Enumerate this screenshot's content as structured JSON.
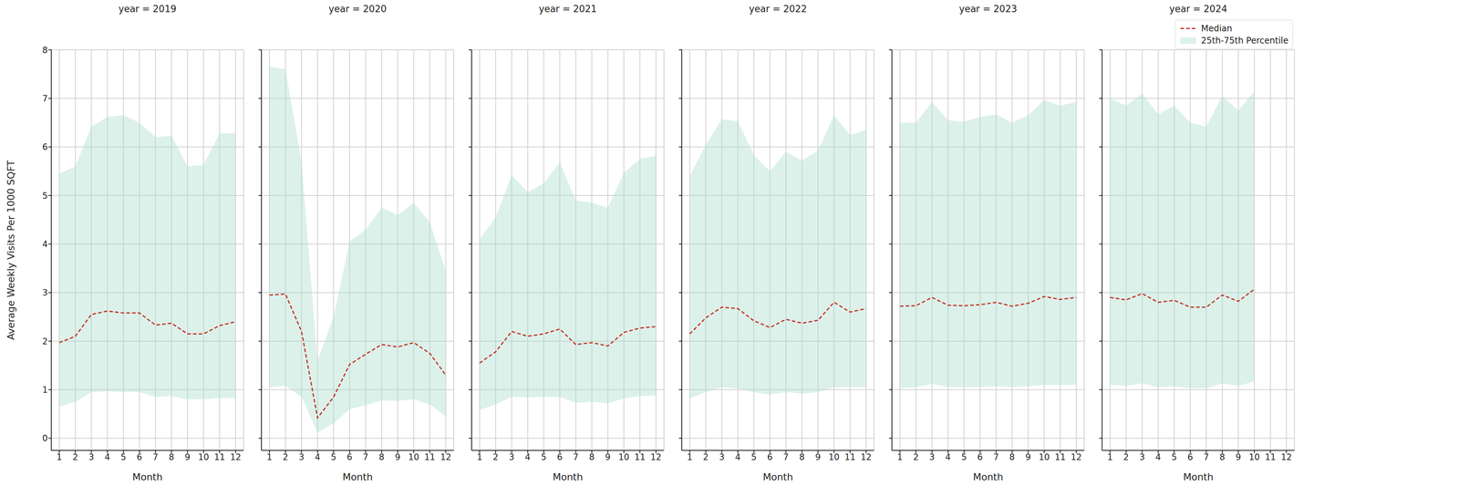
{
  "chart_data": [
    {
      "type": "line",
      "title": "year = 2019",
      "x_label": "Month",
      "y_label": "Average Weekly Visits Per 1000 SQFT",
      "x": [
        1,
        2,
        3,
        4,
        5,
        6,
        7,
        8,
        9,
        10,
        11,
        12
      ],
      "xlim": [
        0.5,
        12.5
      ],
      "xticks": [
        1,
        2,
        3,
        4,
        5,
        6,
        7,
        8,
        9,
        10,
        11,
        12
      ],
      "ylim": [
        -0.25,
        8
      ],
      "yticks": [
        0,
        1,
        2,
        3,
        4,
        5,
        6,
        7,
        8
      ],
      "grid": true,
      "series": [
        {
          "name": "Median",
          "type": "line",
          "color": "#c0392b",
          "line_style": "dashed",
          "values": [
            1.97,
            2.1,
            2.55,
            2.62,
            2.58,
            2.58,
            2.33,
            2.37,
            2.15,
            2.15,
            2.32,
            2.4
          ]
        },
        {
          "name": "25th-75th Percentile",
          "type": "area",
          "color": "#a9dccd",
          "lower": [
            0.65,
            0.75,
            0.95,
            0.97,
            0.95,
            0.95,
            0.85,
            0.87,
            0.8,
            0.8,
            0.83,
            0.83
          ],
          "upper": [
            5.45,
            5.6,
            6.42,
            6.62,
            6.65,
            6.5,
            6.2,
            6.23,
            5.6,
            5.63,
            6.28,
            6.28
          ]
        }
      ]
    },
    {
      "type": "line",
      "title": "year = 2020",
      "x_label": "Month",
      "tick_labels": "x",
      "x": [
        1,
        2,
        3,
        4,
        5,
        6,
        7,
        8,
        9,
        10,
        11,
        12
      ],
      "xlim": [
        0.5,
        12.5
      ],
      "xticks": [
        1,
        2,
        3,
        4,
        5,
        6,
        7,
        8,
        9,
        10,
        11,
        12
      ],
      "ylim": [
        -0.25,
        8
      ],
      "yticks": [
        0,
        1,
        2,
        3,
        4,
        5,
        6,
        7,
        8
      ],
      "grid": true,
      "series": [
        {
          "name": "Median",
          "type": "line",
          "color": "#c0392b",
          "line_style": "dashed",
          "values": [
            2.95,
            2.97,
            2.2,
            0.42,
            0.85,
            1.52,
            1.73,
            1.93,
            1.88,
            1.97,
            1.75,
            1.3
          ]
        },
        {
          "name": "25th-75th Percentile",
          "type": "area",
          "color": "#a9dccd",
          "lower": [
            1.05,
            1.08,
            0.85,
            0.12,
            0.3,
            0.6,
            0.68,
            0.78,
            0.77,
            0.8,
            0.7,
            0.45
          ],
          "upper": [
            7.65,
            7.6,
            5.7,
            1.6,
            2.5,
            4.05,
            4.3,
            4.75,
            4.6,
            4.85,
            4.45,
            3.45
          ]
        }
      ]
    },
    {
      "type": "line",
      "title": "year = 2021",
      "x_label": "Month",
      "tick_labels": "x",
      "x": [
        1,
        2,
        3,
        4,
        5,
        6,
        7,
        8,
        9,
        10,
        11,
        12
      ],
      "xlim": [
        0.5,
        12.5
      ],
      "xticks": [
        1,
        2,
        3,
        4,
        5,
        6,
        7,
        8,
        9,
        10,
        11,
        12
      ],
      "ylim": [
        -0.25,
        8
      ],
      "yticks": [
        0,
        1,
        2,
        3,
        4,
        5,
        6,
        7,
        8
      ],
      "grid": true,
      "series": [
        {
          "name": "Median",
          "type": "line",
          "color": "#c0392b",
          "line_style": "dashed",
          "values": [
            1.55,
            1.78,
            2.2,
            2.1,
            2.15,
            2.25,
            1.93,
            1.97,
            1.9,
            2.18,
            2.27,
            2.3
          ]
        },
        {
          "name": "25th-75th Percentile",
          "type": "area",
          "color": "#a9dccd",
          "lower": [
            0.58,
            0.7,
            0.85,
            0.84,
            0.85,
            0.85,
            0.73,
            0.75,
            0.72,
            0.82,
            0.87,
            0.88
          ],
          "upper": [
            4.1,
            4.55,
            5.42,
            5.07,
            5.25,
            5.68,
            4.9,
            4.85,
            4.75,
            5.47,
            5.75,
            5.82
          ]
        }
      ]
    },
    {
      "type": "line",
      "title": "year = 2022",
      "x_label": "Month",
      "tick_labels": "x",
      "x": [
        1,
        2,
        3,
        4,
        5,
        6,
        7,
        8,
        9,
        10,
        11,
        12
      ],
      "xlim": [
        0.5,
        12.5
      ],
      "xticks": [
        1,
        2,
        3,
        4,
        5,
        6,
        7,
        8,
        9,
        10,
        11,
        12
      ],
      "ylim": [
        -0.25,
        8
      ],
      "yticks": [
        0,
        1,
        2,
        3,
        4,
        5,
        6,
        7,
        8
      ],
      "grid": true,
      "series": [
        {
          "name": "Median",
          "type": "line",
          "color": "#c0392b",
          "line_style": "dashed",
          "values": [
            2.15,
            2.48,
            2.7,
            2.67,
            2.42,
            2.28,
            2.45,
            2.37,
            2.43,
            2.8,
            2.6,
            2.67
          ]
        },
        {
          "name": "25th-75th Percentile",
          "type": "area",
          "color": "#a9dccd",
          "lower": [
            0.82,
            0.95,
            1.05,
            1.02,
            0.95,
            0.9,
            0.95,
            0.92,
            0.95,
            1.05,
            1.05,
            1.05
          ],
          "upper": [
            5.4,
            6.05,
            6.57,
            6.53,
            5.83,
            5.5,
            5.9,
            5.72,
            5.93,
            6.65,
            6.25,
            6.35
          ]
        }
      ]
    },
    {
      "type": "line",
      "title": "year = 2023",
      "x_label": "Month",
      "tick_labels": "x",
      "x": [
        1,
        2,
        3,
        4,
        5,
        6,
        7,
        8,
        9,
        10,
        11,
        12
      ],
      "xlim": [
        0.5,
        12.5
      ],
      "xticks": [
        1,
        2,
        3,
        4,
        5,
        6,
        7,
        8,
        9,
        10,
        11,
        12
      ],
      "ylim": [
        -0.25,
        8
      ],
      "yticks": [
        0,
        1,
        2,
        3,
        4,
        5,
        6,
        7,
        8
      ],
      "grid": true,
      "series": [
        {
          "name": "Median",
          "type": "line",
          "color": "#c0392b",
          "line_style": "dashed",
          "values": [
            2.72,
            2.73,
            2.9,
            2.74,
            2.73,
            2.75,
            2.8,
            2.72,
            2.78,
            2.92,
            2.86,
            2.9
          ]
        },
        {
          "name": "25th-75th Percentile",
          "type": "area",
          "color": "#a9dccd",
          "lower": [
            1.03,
            1.05,
            1.12,
            1.05,
            1.05,
            1.05,
            1.07,
            1.05,
            1.07,
            1.1,
            1.1,
            1.1
          ],
          "upper": [
            6.5,
            6.5,
            6.93,
            6.55,
            6.52,
            6.62,
            6.67,
            6.5,
            6.65,
            6.97,
            6.85,
            6.93
          ]
        }
      ]
    },
    {
      "type": "line",
      "title": "year = 2024",
      "x_label": "Month",
      "tick_labels": "x",
      "legend": "upper right",
      "x": [
        1,
        2,
        3,
        4,
        5,
        6,
        7,
        8,
        9,
        10,
        11,
        12
      ],
      "xlim": [
        0.5,
        12.5
      ],
      "xticks": [
        1,
        2,
        3,
        4,
        5,
        6,
        7,
        8,
        9,
        10,
        11,
        12
      ],
      "ylim": [
        -0.25,
        8
      ],
      "yticks": [
        0,
        1,
        2,
        3,
        4,
        5,
        6,
        7,
        8
      ],
      "grid": true,
      "series": [
        {
          "name": "Median",
          "type": "line",
          "color": "#c0392b",
          "line_style": "dashed",
          "values": [
            2.9,
            2.85,
            2.98,
            2.8,
            2.84,
            2.7,
            2.7,
            2.95,
            2.82,
            3.07,
            null,
            null
          ]
        },
        {
          "name": "25th-75th Percentile",
          "type": "area",
          "color": "#a9dccd",
          "lower": [
            1.1,
            1.08,
            1.13,
            1.05,
            1.07,
            1.03,
            1.03,
            1.13,
            1.08,
            1.17,
            null,
            null
          ],
          "upper": [
            7.0,
            6.85,
            7.1,
            6.67,
            6.85,
            6.5,
            6.42,
            7.05,
            6.75,
            7.15,
            null,
            null
          ]
        }
      ]
    }
  ]
}
